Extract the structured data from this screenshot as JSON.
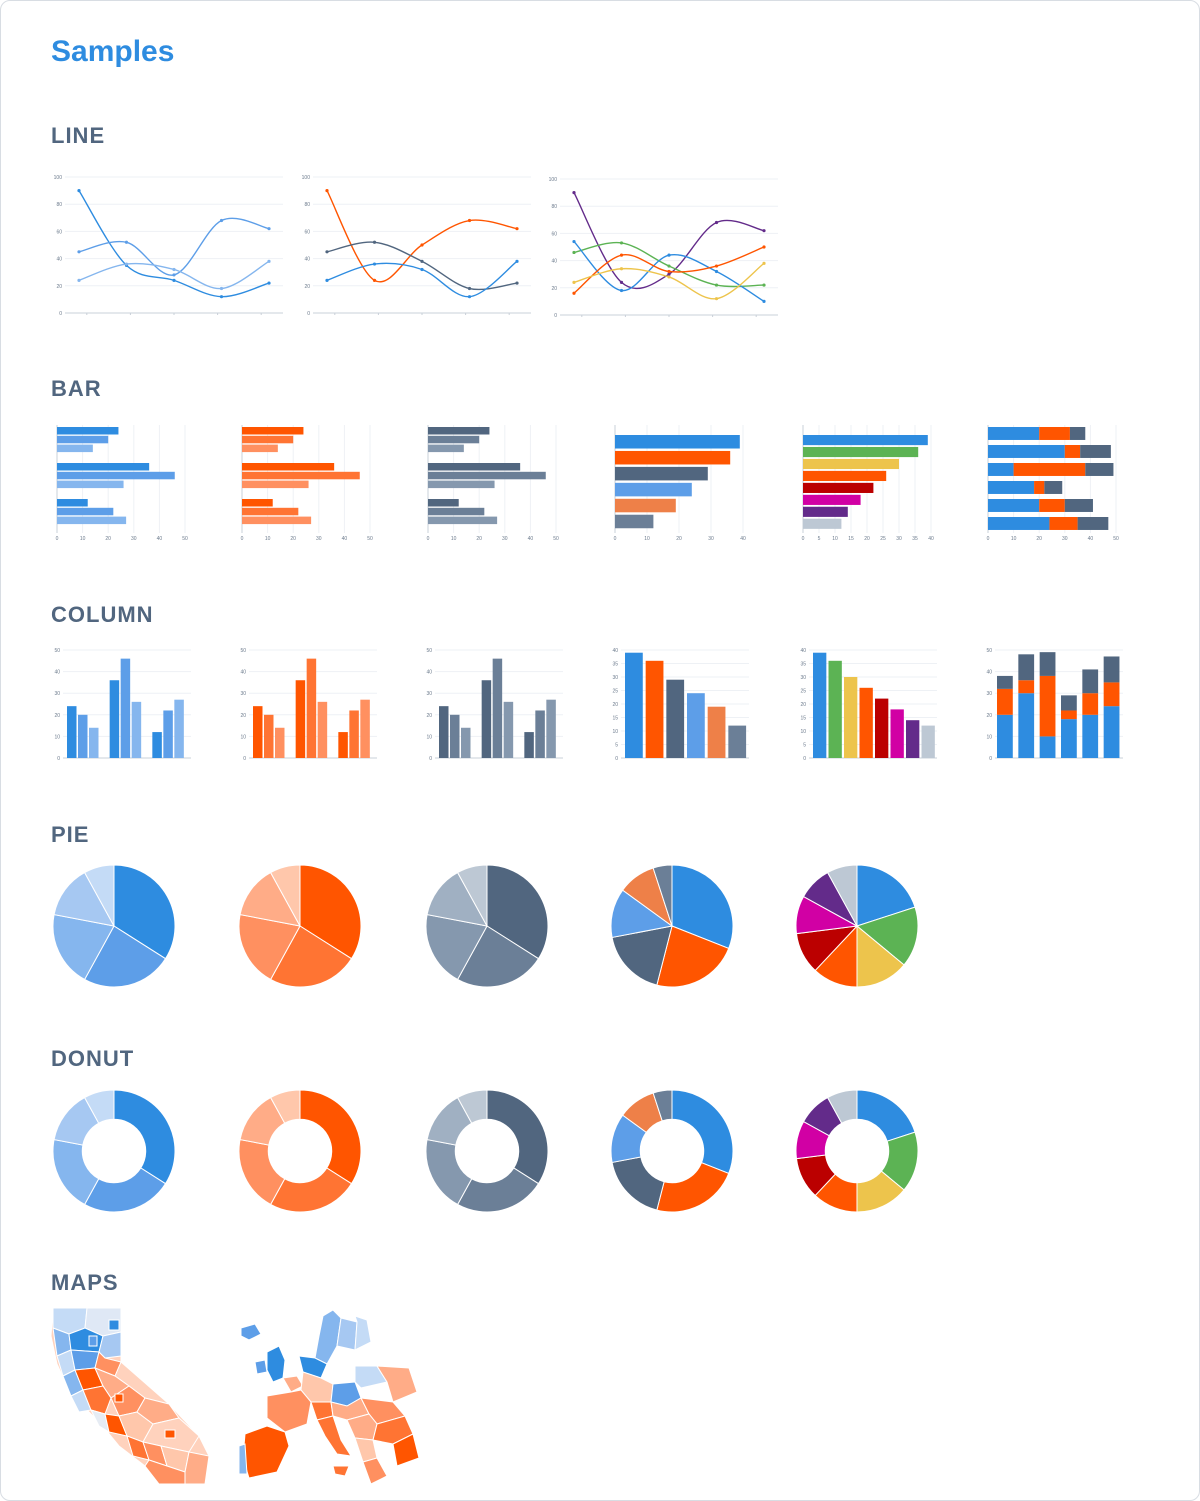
{
  "title": "Samples",
  "sections": {
    "line": "LINE",
    "bar": "BAR",
    "column": "COLUMN",
    "pie": "PIE",
    "donut": "DONUT",
    "maps": "MAPS"
  },
  "palettes": {
    "blue": [
      "#2e8ce0",
      "#5d9ee8",
      "#85b6ee",
      "#a6c8f2",
      "#c4dbf6"
    ],
    "orange": [
      "#ff5500",
      "#ff7433",
      "#ff9060",
      "#ffac87",
      "#ffc7ab"
    ],
    "slate": [
      "#51667f",
      "#6b7f97",
      "#8598ae",
      "#a0b0c2",
      "#bdc8d4"
    ],
    "mixed": [
      "#2e8ce0",
      "#ff5500",
      "#51667f",
      "#5d9ee8",
      "#ee8048",
      "#6b7f97"
    ],
    "rainbow": [
      "#2e8ce0",
      "#5cb354",
      "#edc44c",
      "#ff5500",
      "#bb0000",
      "#d100a4",
      "#632b8a",
      "#bdc8d4"
    ]
  },
  "thumbnails": {
    "line": [
      "line-blue",
      "line-mixed-3",
      "line-multi"
    ],
    "bar": [
      "bar-blue",
      "bar-orange",
      "bar-slate",
      "bar-mixed",
      "bar-rainbow",
      "bar-stacked"
    ],
    "column": [
      "column-blue",
      "column-orange",
      "column-slate",
      "column-mixed",
      "column-rainbow",
      "column-stacked"
    ],
    "pie": [
      "pie-blue",
      "pie-orange",
      "pie-slate",
      "pie-mixed",
      "pie-rainbow"
    ],
    "donut": [
      "donut-blue",
      "donut-orange",
      "donut-slate",
      "donut-mixed",
      "donut-rainbow"
    ],
    "maps": [
      "map-california",
      "map-europe"
    ]
  },
  "chart_data": [
    {
      "type": "line",
      "ylim": [
        0,
        100
      ],
      "ytick_labels": [
        "0",
        "20",
        "40",
        "60",
        "80",
        "100"
      ],
      "series": [
        {
          "color": "#2e8ce0",
          "values": [
            90,
            35,
            24,
            12,
            22
          ]
        },
        {
          "color": "#5d9ee8",
          "values": [
            45,
            52,
            28,
            68,
            62
          ]
        },
        {
          "color": "#85b6ee",
          "values": [
            24,
            36,
            32,
            18,
            38
          ]
        }
      ]
    },
    {
      "type": "line",
      "ylim": [
        0,
        100
      ],
      "ytick_labels": [
        "0",
        "20",
        "40",
        "60",
        "80",
        "100"
      ],
      "series": [
        {
          "color": "#ff5500",
          "values": [
            90,
            24,
            50,
            68,
            62
          ]
        },
        {
          "color": "#51667f",
          "values": [
            45,
            52,
            38,
            18,
            22
          ]
        },
        {
          "color": "#2e8ce0",
          "values": [
            24,
            36,
            32,
            12,
            38
          ]
        }
      ]
    },
    {
      "type": "line",
      "ylim": [
        0,
        100
      ],
      "ytick_labels": [
        "0",
        "20",
        "40",
        "60",
        "80",
        "100"
      ],
      "series": [
        {
          "color": "#632b8a",
          "values": [
            90,
            24,
            30,
            68,
            62
          ]
        },
        {
          "color": "#5cb354",
          "values": [
            46,
            53,
            36,
            22,
            22
          ]
        },
        {
          "color": "#2e8ce0",
          "values": [
            54,
            18,
            44,
            32,
            10
          ]
        },
        {
          "color": "#ff5500",
          "values": [
            16,
            44,
            32,
            36,
            50
          ]
        },
        {
          "color": "#edc44c",
          "values": [
            24,
            34,
            28,
            12,
            38
          ]
        }
      ]
    },
    {
      "type": "bar",
      "variant": "grouped",
      "palette": "blue",
      "xlim": [
        0,
        50
      ],
      "xtick_labels": [
        "0",
        "10",
        "20",
        "30",
        "40",
        "50"
      ],
      "groups": [
        [
          24,
          20,
          14
        ],
        [
          36,
          46,
          26
        ],
        [
          12,
          22,
          27
        ]
      ]
    },
    {
      "type": "bar",
      "variant": "grouped",
      "palette": "orange",
      "xlim": [
        0,
        50
      ],
      "xtick_labels": [
        "0",
        "10",
        "20",
        "30",
        "40",
        "50"
      ],
      "groups": [
        [
          24,
          20,
          14
        ],
        [
          36,
          46,
          26
        ],
        [
          12,
          22,
          27
        ]
      ]
    },
    {
      "type": "bar",
      "variant": "grouped",
      "palette": "slate",
      "xlim": [
        0,
        50
      ],
      "xtick_labels": [
        "0",
        "10",
        "20",
        "30",
        "40",
        "50"
      ],
      "groups": [
        [
          24,
          20,
          14
        ],
        [
          36,
          46,
          26
        ],
        [
          12,
          22,
          27
        ]
      ]
    },
    {
      "type": "bar",
      "variant": "single",
      "palette": "mixed",
      "xlim": [
        0,
        40
      ],
      "xtick_labels": [
        "0",
        "10",
        "20",
        "30",
        "40"
      ],
      "values": [
        39,
        36,
        29,
        24,
        19,
        12
      ]
    },
    {
      "type": "bar",
      "variant": "single",
      "palette": "rainbow",
      "xlim": [
        0,
        40
      ],
      "xtick_labels": [
        "0",
        "5",
        "10",
        "15",
        "20",
        "25",
        "30",
        "35",
        "40"
      ],
      "values": [
        39,
        36,
        30,
        26,
        22,
        18,
        14,
        12
      ]
    },
    {
      "type": "bar",
      "variant": "stacked",
      "palette": "mixed",
      "xlim": [
        0,
        50
      ],
      "xtick_labels": [
        "0",
        "10",
        "20",
        "30",
        "40",
        "50"
      ],
      "stacks": [
        [
          20,
          12,
          6
        ],
        [
          30,
          6,
          12
        ],
        [
          10,
          28,
          11
        ],
        [
          18,
          4,
          7
        ],
        [
          20,
          10,
          11
        ],
        [
          24,
          11,
          12
        ]
      ]
    },
    {
      "type": "bar",
      "variant": "grouped",
      "orientation": "vertical",
      "palette": "blue",
      "ylim": [
        0,
        50
      ],
      "ytick_labels": [
        "0",
        "10",
        "20",
        "30",
        "40",
        "50"
      ],
      "groups": [
        [
          24,
          20,
          14
        ],
        [
          36,
          46,
          26
        ],
        [
          12,
          22,
          27
        ]
      ]
    },
    {
      "type": "bar",
      "variant": "grouped",
      "orientation": "vertical",
      "palette": "orange",
      "ylim": [
        0,
        50
      ],
      "ytick_labels": [
        "0",
        "10",
        "20",
        "30",
        "40",
        "50"
      ],
      "groups": [
        [
          24,
          20,
          14
        ],
        [
          36,
          46,
          26
        ],
        [
          12,
          22,
          27
        ]
      ]
    },
    {
      "type": "bar",
      "variant": "grouped",
      "orientation": "vertical",
      "palette": "slate",
      "ylim": [
        0,
        50
      ],
      "ytick_labels": [
        "0",
        "10",
        "20",
        "30",
        "40",
        "50"
      ],
      "groups": [
        [
          24,
          20,
          14
        ],
        [
          36,
          46,
          26
        ],
        [
          12,
          22,
          27
        ]
      ]
    },
    {
      "type": "bar",
      "variant": "single",
      "orientation": "vertical",
      "palette": "mixed",
      "ylim": [
        0,
        40
      ],
      "ytick_labels": [
        "0",
        "5",
        "10",
        "15",
        "20",
        "25",
        "30",
        "35",
        "40"
      ],
      "values": [
        39,
        36,
        29,
        24,
        19,
        12
      ]
    },
    {
      "type": "bar",
      "variant": "single",
      "orientation": "vertical",
      "palette": "rainbow",
      "ylim": [
        0,
        40
      ],
      "ytick_labels": [
        "0",
        "5",
        "10",
        "15",
        "20",
        "25",
        "30",
        "35",
        "40"
      ],
      "values": [
        39,
        36,
        30,
        26,
        22,
        18,
        14,
        12
      ]
    },
    {
      "type": "bar",
      "variant": "stacked",
      "orientation": "vertical",
      "palette": "mixed",
      "ylim": [
        0,
        50
      ],
      "ytick_labels": [
        "0",
        "10",
        "20",
        "30",
        "40",
        "50"
      ],
      "stacks": [
        [
          20,
          12,
          6
        ],
        [
          30,
          6,
          12
        ],
        [
          10,
          28,
          11
        ],
        [
          18,
          4,
          7
        ],
        [
          20,
          10,
          11
        ],
        [
          24,
          11,
          12
        ]
      ]
    },
    {
      "type": "pie",
      "palette": "blue",
      "values": [
        34,
        24,
        20,
        14,
        8
      ]
    },
    {
      "type": "pie",
      "palette": "orange",
      "values": [
        34,
        24,
        20,
        14,
        8
      ]
    },
    {
      "type": "pie",
      "palette": "slate",
      "values": [
        34,
        24,
        20,
        14,
        8
      ]
    },
    {
      "type": "pie",
      "palette": "mixed",
      "values": [
        31,
        23,
        18,
        13,
        10,
        5
      ]
    },
    {
      "type": "pie",
      "palette": "rainbow",
      "values": [
        20,
        16,
        14,
        12,
        11,
        10,
        9,
        8
      ]
    },
    {
      "type": "donut",
      "palette": "blue",
      "values": [
        34,
        24,
        20,
        14,
        8
      ]
    },
    {
      "type": "donut",
      "palette": "orange",
      "values": [
        34,
        24,
        20,
        14,
        8
      ]
    },
    {
      "type": "donut",
      "palette": "slate",
      "values": [
        34,
        24,
        20,
        14,
        8
      ]
    },
    {
      "type": "donut",
      "palette": "mixed",
      "values": [
        31,
        23,
        18,
        13,
        10,
        5
      ]
    },
    {
      "type": "donut",
      "palette": "rainbow",
      "values": [
        20,
        16,
        14,
        12,
        11,
        10,
        9,
        8
      ]
    }
  ]
}
